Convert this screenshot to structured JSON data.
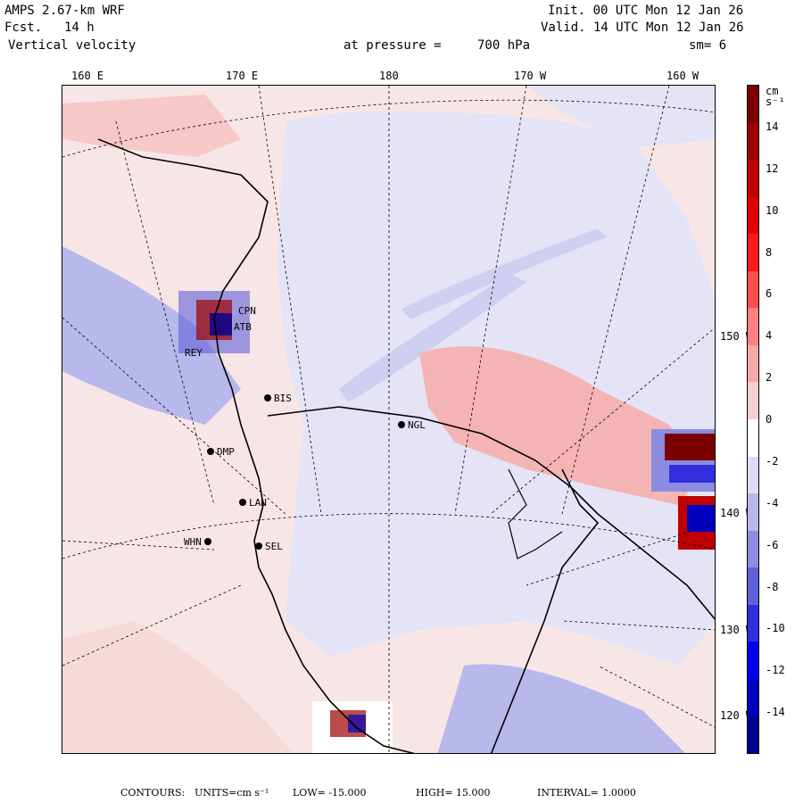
{
  "header": {
    "model": "AMPS 2.67-km WRF",
    "fcst_label": "Fcst.",
    "fcst_value": "14 h",
    "field": "Vertical velocity",
    "init": "Init. 00 UTC Mon 12 Jan 26",
    "valid": "Valid. 14 UTC Mon 12 Jan 26",
    "pressure_label": "at pressure =",
    "pressure_value": "700 hPa",
    "smooth": "sm= 6"
  },
  "longitude_labels": [
    "160 E",
    "170 E",
    "180",
    "170 W",
    "160 W"
  ],
  "latitude_labels": [
    "150 W",
    "140 W",
    "130 W",
    "120 W"
  ],
  "stations": [
    "CPN",
    "ATB",
    "REY",
    "BIS",
    "NGL",
    "DMP",
    "LAN",
    "WHN",
    "SEL"
  ],
  "colorbar": {
    "unit_label": "cm s⁻¹",
    "labels": [
      "14",
      "12",
      "10",
      "8",
      "6",
      "4",
      "2",
      "0",
      "-2",
      "-4",
      "-6",
      "-8",
      "-10",
      "-12",
      "-14"
    ],
    "colors": [
      "#7a0000",
      "#a00000",
      "#c00000",
      "#e00000",
      "#ff1a1a",
      "#ff5050",
      "#ff8080",
      "#f4a8a8",
      "#f8cfcf",
      "#ffffff",
      "#dcdcf4",
      "#b8b8ec",
      "#8c8ce0",
      "#6060d8",
      "#3030e0",
      "#0000f0",
      "#0000c0",
      "#000090"
    ]
  },
  "footer": {
    "contours": "CONTOURS:",
    "units": "UNITS=cm s⁻¹",
    "low": "LOW= -15.000",
    "high": "HIGH= 15.000",
    "interval": "INTERVAL= 1.0000"
  }
}
